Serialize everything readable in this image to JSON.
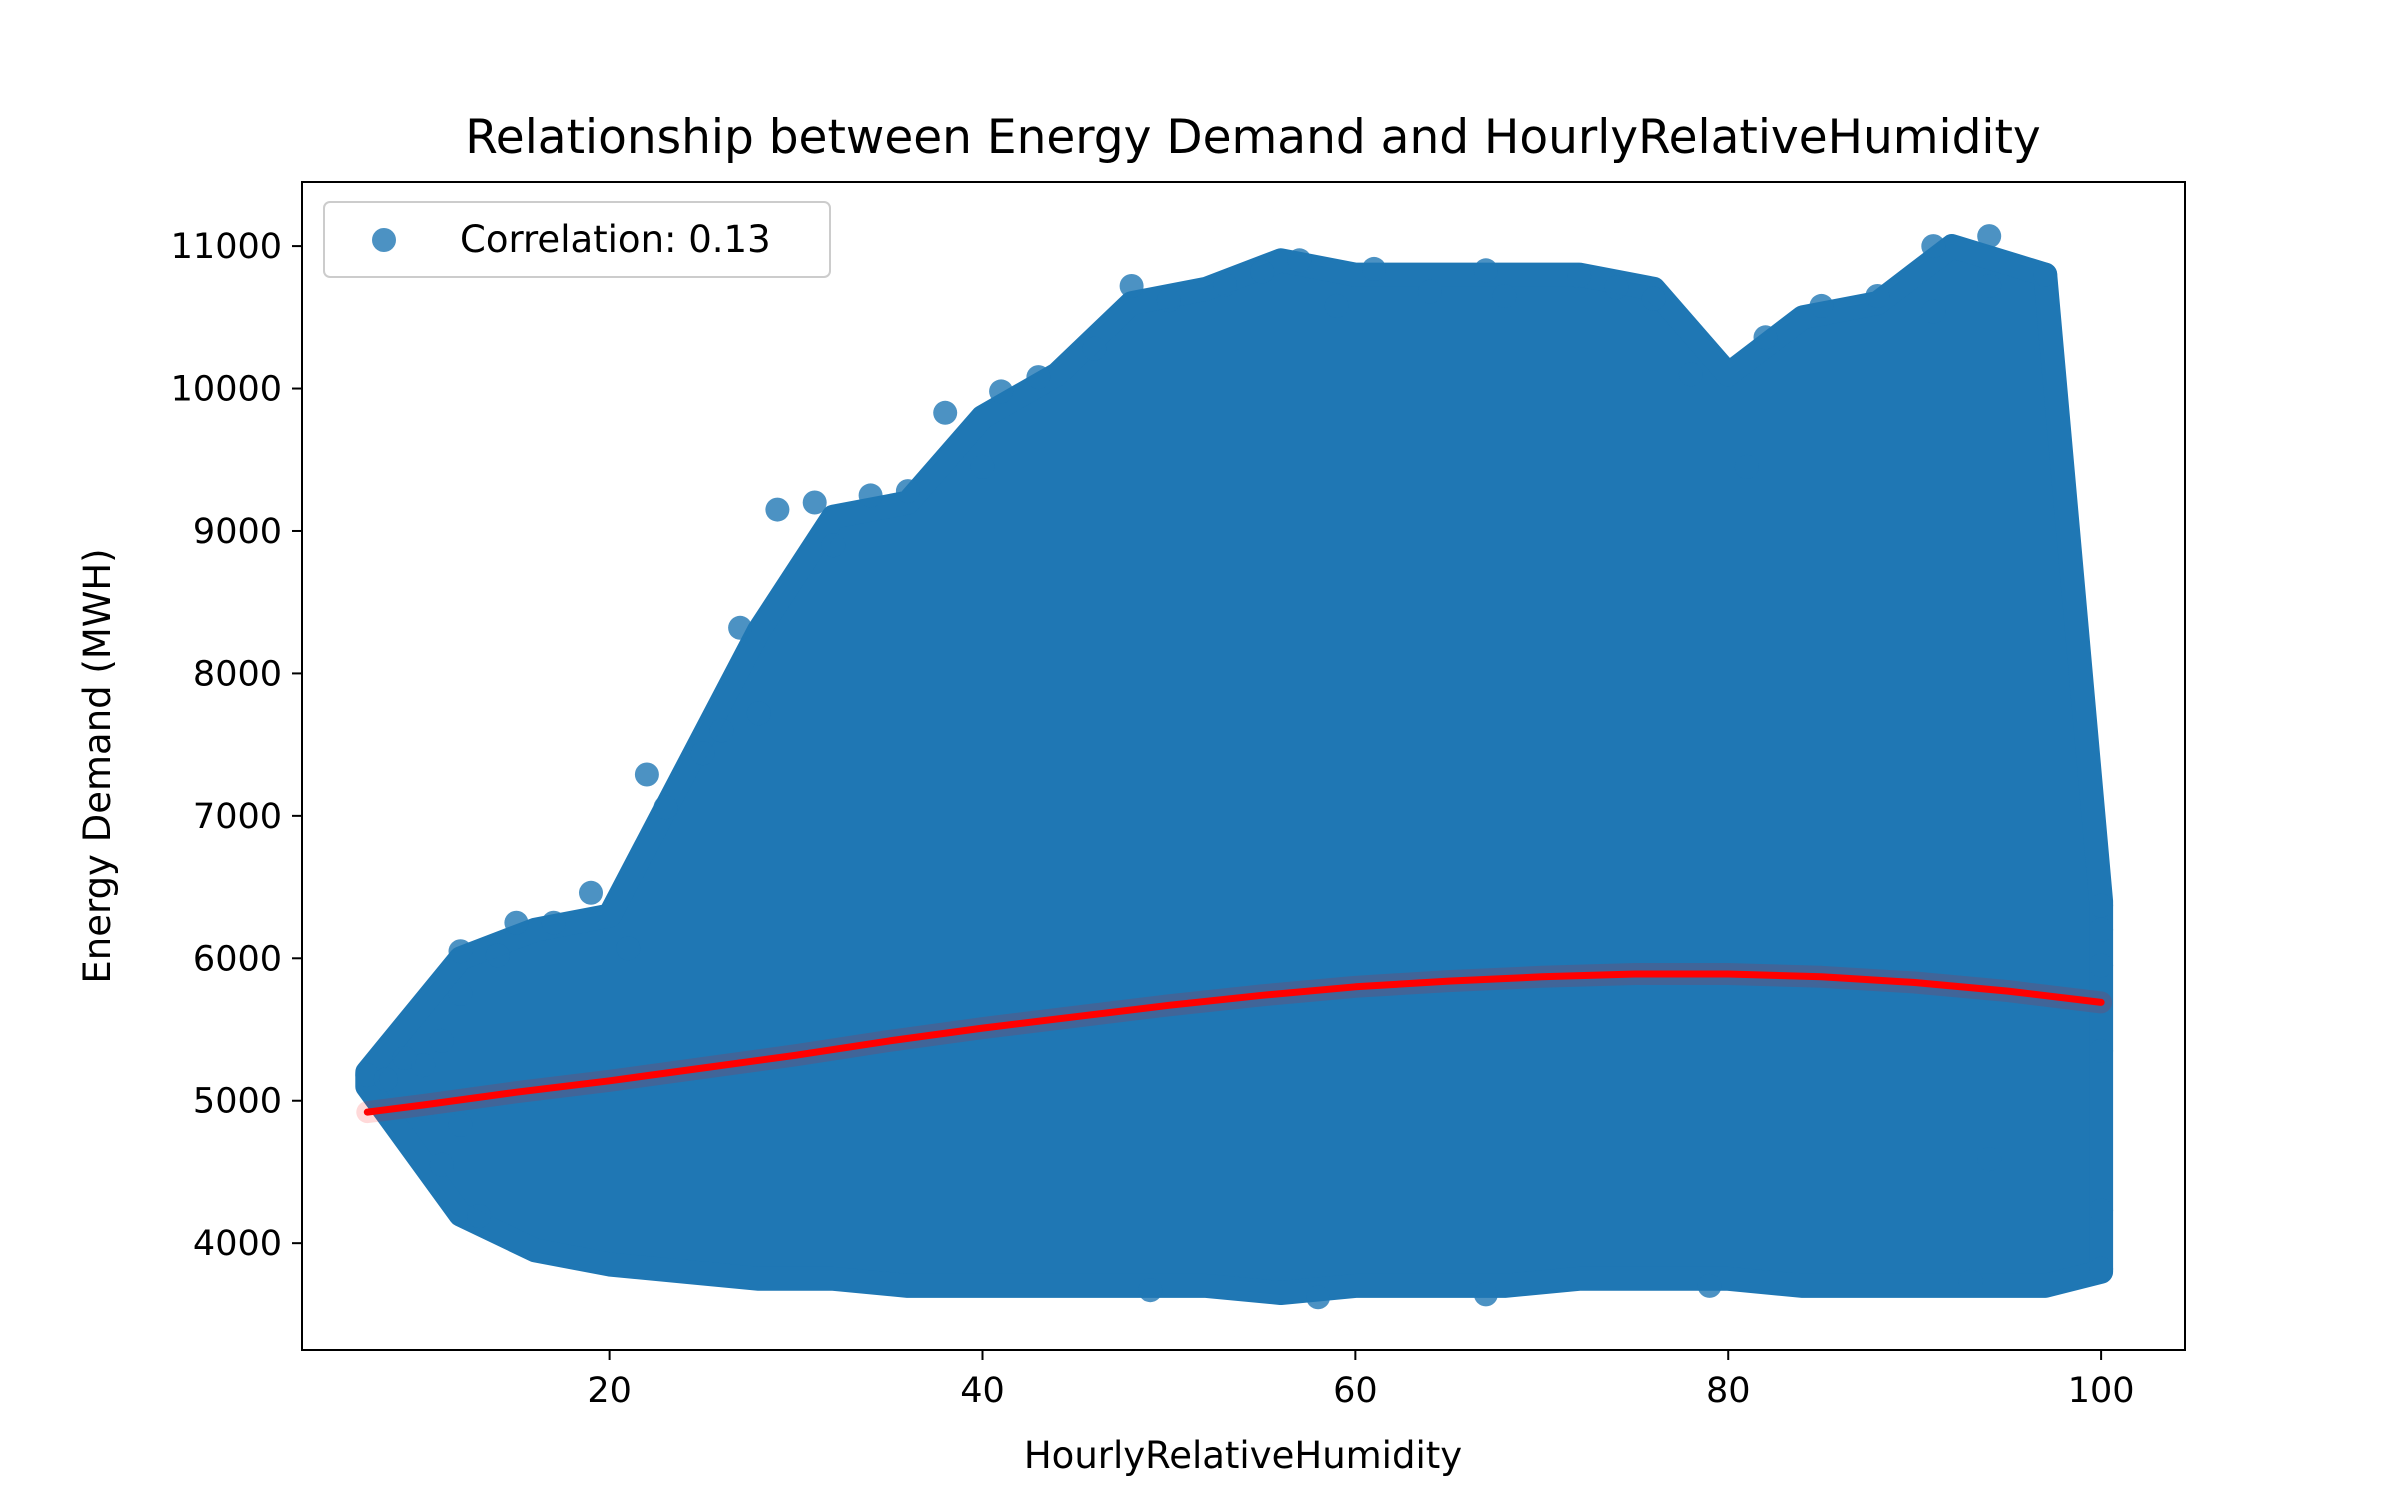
{
  "chart_data": {
    "type": "scatter",
    "title": "Relationship between Energy Demand and HourlyRelativeHumidity",
    "xlabel": "HourlyRelativeHumidity",
    "ylabel": "Energy Demand (MWH)",
    "xlim": [
      3.5,
      104.5
    ],
    "ylim": [
      3250,
      11450
    ],
    "xticks": [
      20,
      40,
      60,
      80,
      100
    ],
    "yticks": [
      4000,
      5000,
      6000,
      7000,
      8000,
      9000,
      10000,
      11000
    ],
    "grid": false,
    "legend": {
      "position": "top-left",
      "entries": [
        "Correlation: 0.13"
      ]
    },
    "colors": {
      "points": "#1f77b4",
      "fit_line": "#ff0000"
    },
    "series": [
      {
        "kind": "scatter",
        "band_envelope": {
          "x": [
            7,
            12,
            16,
            20,
            24,
            28,
            32,
            36,
            40,
            44,
            48,
            52,
            56,
            60,
            64,
            68,
            72,
            76,
            80,
            84,
            88,
            92,
            97,
            100
          ],
          "min": [
            5100,
            4200,
            3950,
            3850,
            3800,
            3750,
            3750,
            3700,
            3700,
            3700,
            3700,
            3700,
            3650,
            3700,
            3700,
            3700,
            3750,
            3750,
            3750,
            3700,
            3700,
            3700,
            3700,
            3800
          ],
          "max": [
            5200,
            6000,
            6200,
            6300,
            7300,
            8300,
            9100,
            9200,
            9800,
            10100,
            10600,
            10700,
            10900,
            10800,
            10800,
            10800,
            10800,
            10700,
            10100,
            10500,
            10600,
            11000,
            10800,
            6400
          ]
        },
        "points": [
          {
            "x": 7,
            "y": 5180
          },
          {
            "x": 8,
            "y": 5150
          },
          {
            "x": 9,
            "y": 5300
          },
          {
            "x": 10,
            "y": 4950
          },
          {
            "x": 10,
            "y": 5250
          },
          {
            "x": 11,
            "y": 4550
          },
          {
            "x": 11,
            "y": 5420
          },
          {
            "x": 12,
            "y": 6050
          },
          {
            "x": 12,
            "y": 5750
          },
          {
            "x": 12,
            "y": 4830
          },
          {
            "x": 13,
            "y": 4190
          },
          {
            "x": 14,
            "y": 6020
          },
          {
            "x": 15,
            "y": 6250
          },
          {
            "x": 17,
            "y": 6250
          },
          {
            "x": 19,
            "y": 6460
          },
          {
            "x": 21,
            "y": 6070
          },
          {
            "x": 22,
            "y": 7290
          },
          {
            "x": 23,
            "y": 7060
          },
          {
            "x": 25,
            "y": 7440
          },
          {
            "x": 26,
            "y": 7600
          },
          {
            "x": 27,
            "y": 8320
          },
          {
            "x": 28,
            "y": 7720
          },
          {
            "x": 29,
            "y": 9150
          },
          {
            "x": 31,
            "y": 9200
          },
          {
            "x": 32,
            "y": 8900
          },
          {
            "x": 34,
            "y": 9250
          },
          {
            "x": 36,
            "y": 9280
          },
          {
            "x": 38,
            "y": 9830
          },
          {
            "x": 40,
            "y": 9450
          },
          {
            "x": 41,
            "y": 9980
          },
          {
            "x": 43,
            "y": 10080
          },
          {
            "x": 46,
            "y": 10280
          },
          {
            "x": 48,
            "y": 10720
          },
          {
            "x": 50,
            "y": 10620
          },
          {
            "x": 53,
            "y": 10730
          },
          {
            "x": 55,
            "y": 10820
          },
          {
            "x": 57,
            "y": 10900
          },
          {
            "x": 59,
            "y": 10580
          },
          {
            "x": 61,
            "y": 10840
          },
          {
            "x": 64,
            "y": 10680
          },
          {
            "x": 67,
            "y": 10830
          },
          {
            "x": 68,
            "y": 10650
          },
          {
            "x": 72,
            "y": 10790
          },
          {
            "x": 74,
            "y": 10710
          },
          {
            "x": 76,
            "y": 10630
          },
          {
            "x": 78,
            "y": 10100
          },
          {
            "x": 81,
            "y": 9450
          },
          {
            "x": 82,
            "y": 10360
          },
          {
            "x": 85,
            "y": 10580
          },
          {
            "x": 88,
            "y": 10650
          },
          {
            "x": 91,
            "y": 11000
          },
          {
            "x": 91,
            "y": 10540
          },
          {
            "x": 94,
            "y": 11070
          },
          {
            "x": 94,
            "y": 10720
          },
          {
            "x": 97,
            "y": 10800
          },
          {
            "x": 100,
            "y": 6370
          },
          {
            "x": 100,
            "y": 6200
          },
          {
            "x": 100,
            "y": 5950
          },
          {
            "x": 100,
            "y": 5350
          },
          {
            "x": 100,
            "y": 4230
          },
          {
            "x": 100,
            "y": 3820
          },
          {
            "x": 58,
            "y": 3620
          },
          {
            "x": 67,
            "y": 3640
          },
          {
            "x": 49,
            "y": 3670
          },
          {
            "x": 79,
            "y": 3700
          },
          {
            "x": 93,
            "y": 3730
          },
          {
            "x": 94,
            "y": 4590
          }
        ]
      },
      {
        "kind": "line",
        "name": "fit",
        "x": [
          7,
          10,
          15,
          20,
          25,
          30,
          35,
          40,
          45,
          50,
          55,
          60,
          65,
          70,
          75,
          80,
          85,
          90,
          95,
          100
        ],
        "y": [
          4920,
          4970,
          5060,
          5140,
          5230,
          5320,
          5420,
          5510,
          5590,
          5670,
          5740,
          5800,
          5840,
          5870,
          5890,
          5890,
          5870,
          5830,
          5770,
          5690
        ]
      }
    ]
  }
}
